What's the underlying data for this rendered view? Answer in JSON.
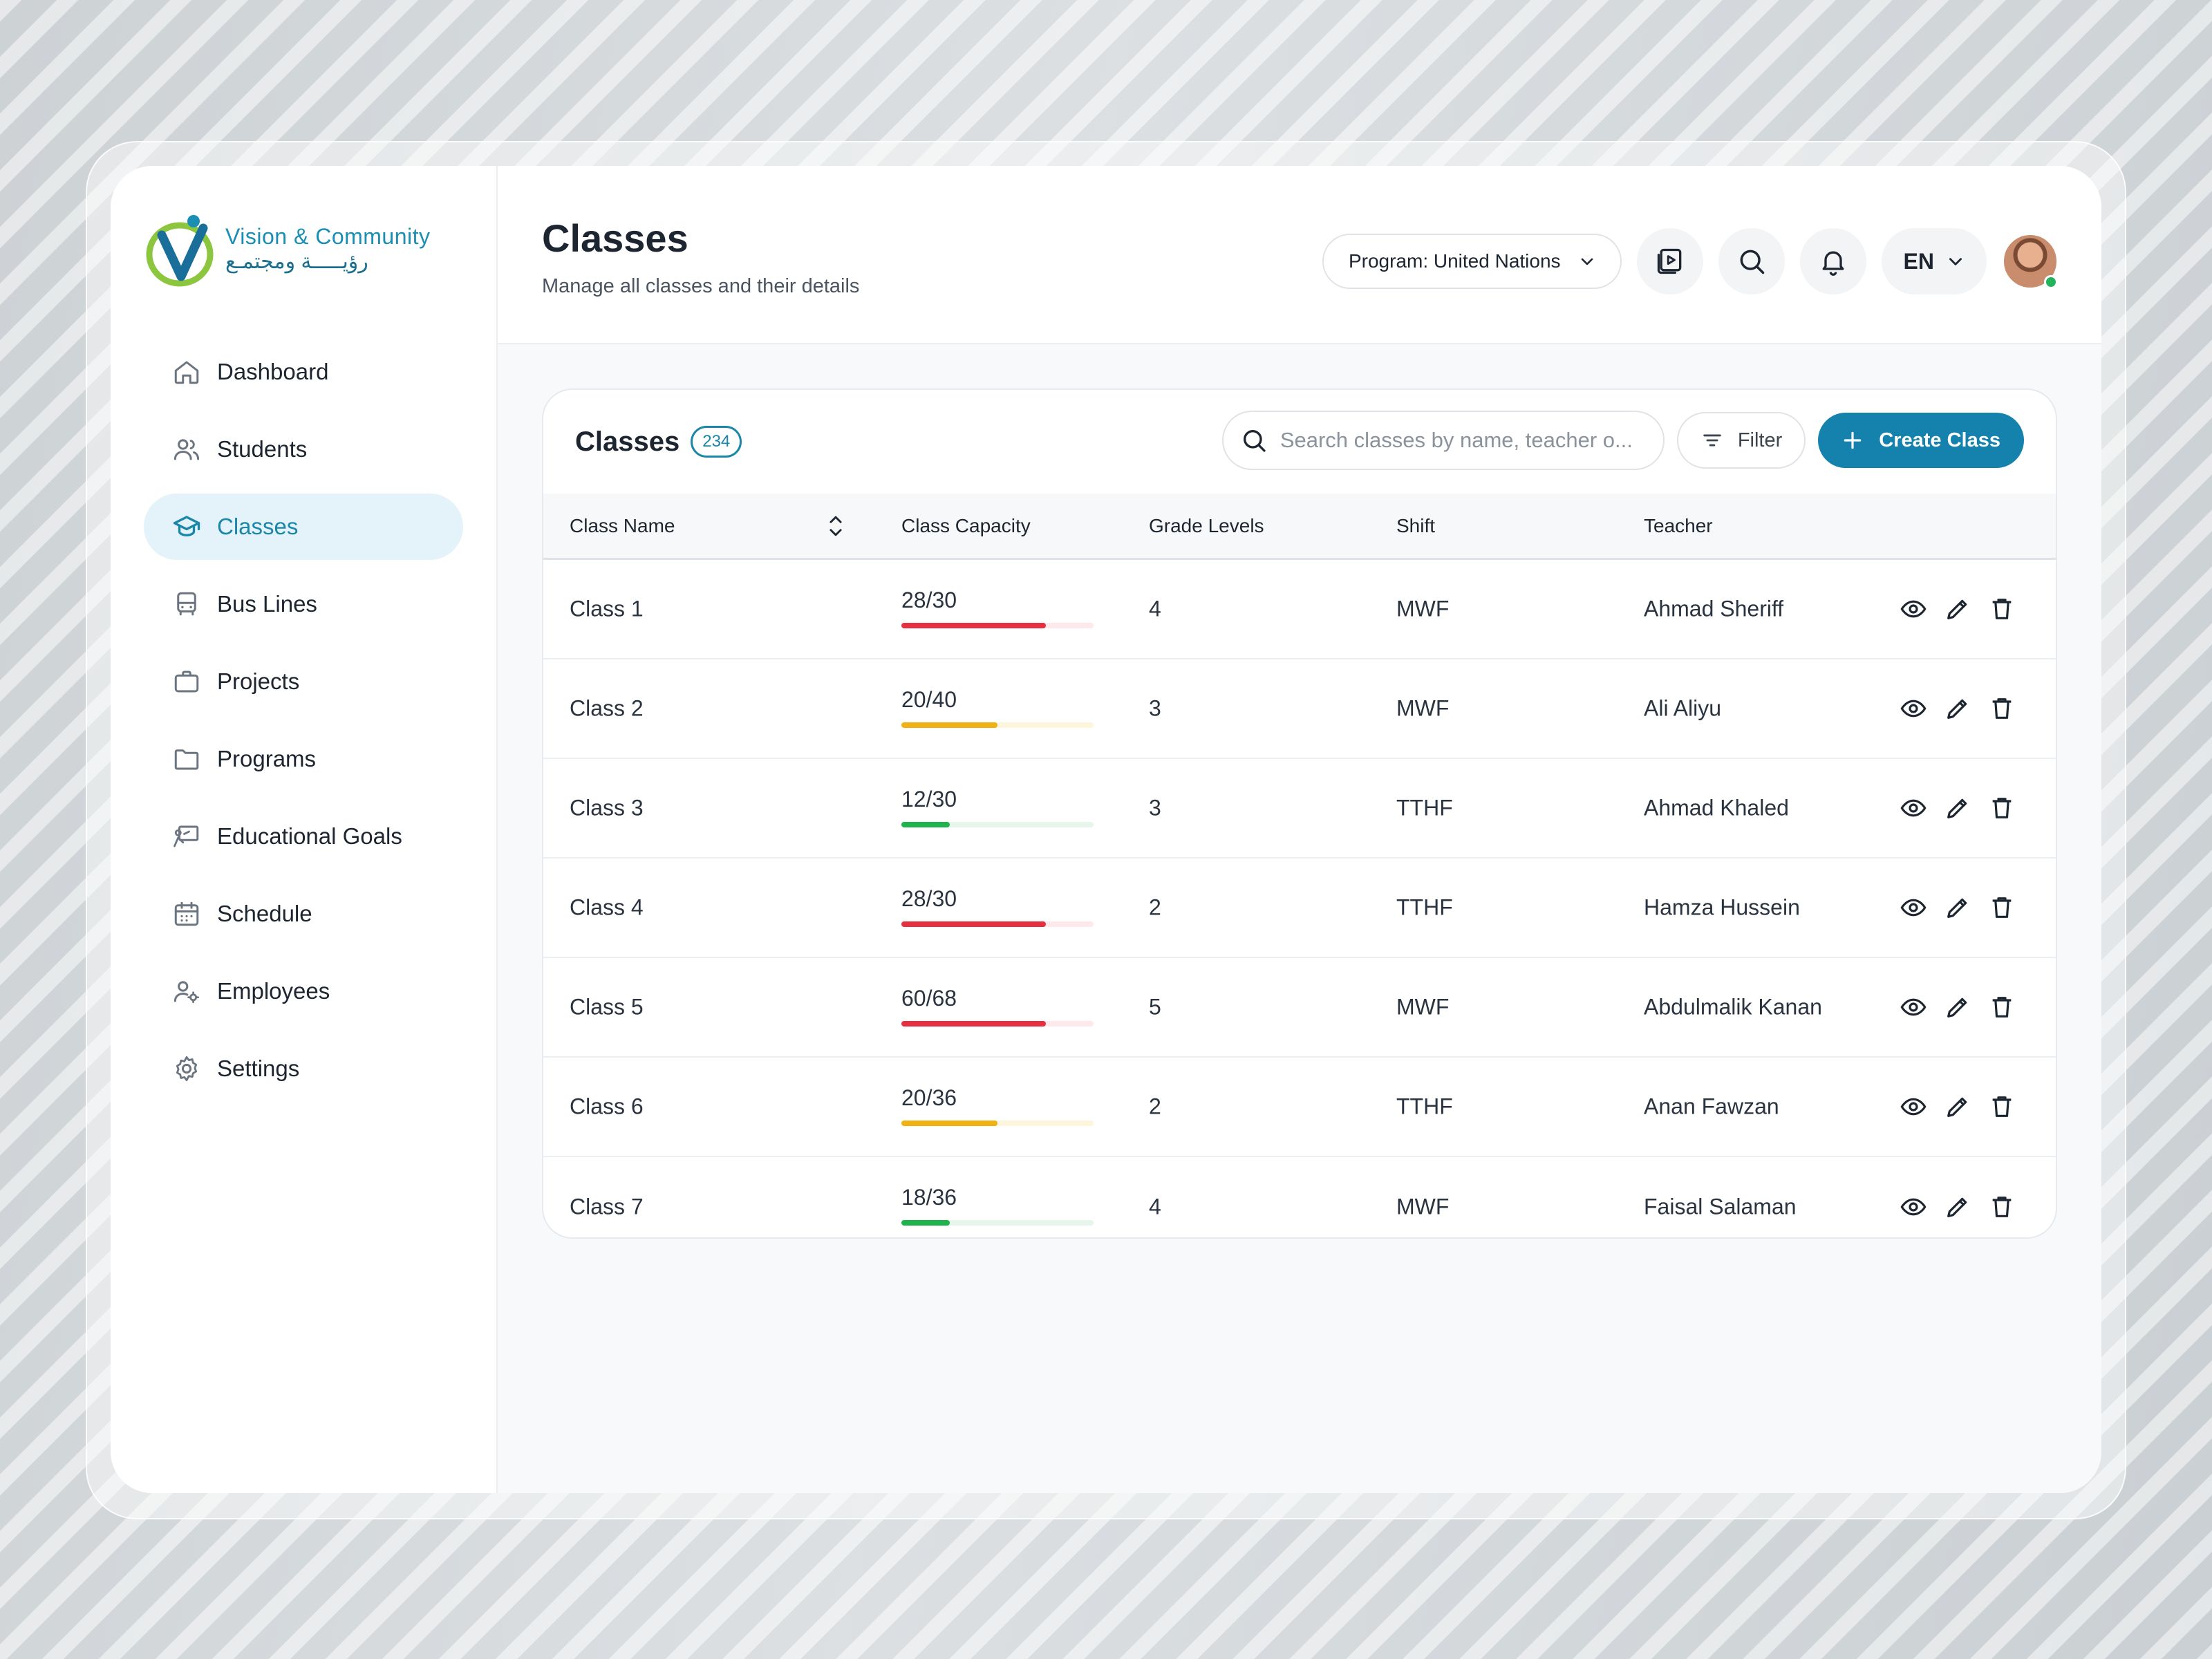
{
  "brand": {
    "name_en": "Vision & Community",
    "name_ar": "رؤيـــــة ومجتمـع",
    "accent": "#1a86a8"
  },
  "sidebar": {
    "items": [
      {
        "label": "Dashboard",
        "icon": "home-icon",
        "active": false
      },
      {
        "label": "Students",
        "icon": "users-icon",
        "active": false
      },
      {
        "label": "Classes",
        "icon": "graduation-cap-icon",
        "active": true
      },
      {
        "label": "Bus Lines",
        "icon": "bus-icon",
        "active": false
      },
      {
        "label": "Projects",
        "icon": "briefcase-icon",
        "active": false
      },
      {
        "label": "Programs",
        "icon": "folder-icon",
        "active": false
      },
      {
        "label": "Educational Goals",
        "icon": "goal-board-icon",
        "active": false
      },
      {
        "label": "Schedule",
        "icon": "calendar-icon",
        "active": false
      },
      {
        "label": "Employees",
        "icon": "user-gear-icon",
        "active": false
      },
      {
        "label": "Settings",
        "icon": "gear-icon",
        "active": false
      }
    ]
  },
  "header": {
    "title": "Classes",
    "subtitle": "Manage all classes and their details",
    "program_select": "Program: United Nations",
    "language": "EN",
    "icons": [
      "video-library-icon",
      "search-icon",
      "bell-icon"
    ]
  },
  "card": {
    "title": "Classes",
    "count": "234",
    "search_placeholder": "Search classes by name, teacher o...",
    "filter_label": "Filter",
    "create_label": "Create Class"
  },
  "table": {
    "columns": [
      "Class Name",
      "Class Capacity",
      "Grade Levels",
      "Shift",
      "Teacher"
    ],
    "rows": [
      {
        "name": "Class 1",
        "capacity": "28/30",
        "fill": 0.75,
        "status": "high",
        "grade": "4",
        "shift": "MWF",
        "teacher": "Ahmad Sheriff"
      },
      {
        "name": "Class 2",
        "capacity": "20/40",
        "fill": 0.5,
        "status": "mid",
        "grade": "3",
        "shift": "MWF",
        "teacher": "Ali Aliyu"
      },
      {
        "name": "Class 3",
        "capacity": "12/30",
        "fill": 0.25,
        "status": "low",
        "grade": "3",
        "shift": "TTHF",
        "teacher": "Ahmad Khaled"
      },
      {
        "name": "Class 4",
        "capacity": "28/30",
        "fill": 0.75,
        "status": "high",
        "grade": "2",
        "shift": "TTHF",
        "teacher": "Hamza Hussein"
      },
      {
        "name": "Class 5",
        "capacity": "60/68",
        "fill": 0.75,
        "status": "high",
        "grade": "5",
        "shift": "MWF",
        "teacher": "Abdulmalik Kanan"
      },
      {
        "name": "Class 6",
        "capacity": "20/36",
        "fill": 0.5,
        "status": "mid",
        "grade": "2",
        "shift": "TTHF",
        "teacher": "Anan Fawzan"
      },
      {
        "name": "Class 7",
        "capacity": "18/36",
        "fill": 0.25,
        "status": "low",
        "grade": "4",
        "shift": "MWF",
        "teacher": "Faisal Salaman"
      }
    ],
    "status_colors": {
      "high": {
        "fill": "#e5303f",
        "track": "#fde9eb"
      },
      "mid": {
        "fill": "#f0b114",
        "track": "#fdf6dc"
      },
      "low": {
        "fill": "#1fb24d",
        "track": "#e6f6ea"
      }
    },
    "row_action_icons": [
      "eye-icon",
      "pencil-icon",
      "trash-icon"
    ]
  }
}
